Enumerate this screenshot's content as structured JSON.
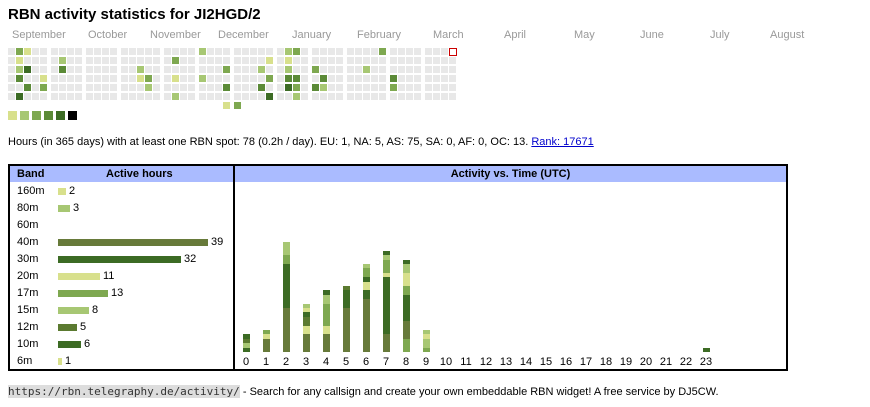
{
  "title": "RBN activity statistics for JI2HGD/2",
  "months": [
    "September",
    "October",
    "November",
    "December",
    "January",
    "February",
    "March",
    "April",
    "May",
    "June",
    "July",
    "August"
  ],
  "colors": {
    "empty": "#e8e8e8",
    "levels": [
      "#d8e08c",
      "#a7c773",
      "#7ea850",
      "#5b8a37",
      "#3c6b24",
      "#000000"
    ],
    "bands": {
      "160m": "#d8e08c",
      "80m": "#a7c773",
      "60m": "#cccccc",
      "40m": "#677a3a",
      "30m": "#3c6b24",
      "20m": "#d8e08c",
      "17m": "#7ea850",
      "15m": "#a7c773",
      "12m": "#5b7a30",
      "10m": "#3c6b24",
      "6m": "#d8e08c"
    },
    "header_bg": "#aabbff",
    "today_marker": "#cc0000"
  },
  "heatmap": {
    "today": {
      "week": 51,
      "day": 0
    },
    "active": [
      [
        1,
        1,
        0
      ],
      [
        1,
        0,
        2
      ],
      [
        1,
        2,
        1
      ],
      [
        1,
        3,
        3
      ],
      [
        1,
        5,
        4
      ],
      [
        2,
        0,
        0
      ],
      [
        2,
        2,
        4
      ],
      [
        2,
        4,
        3
      ],
      [
        4,
        3,
        0
      ],
      [
        4,
        4,
        2
      ],
      [
        6,
        1,
        1
      ],
      [
        6,
        2,
        3
      ],
      [
        15,
        2,
        1
      ],
      [
        15,
        3,
        0
      ],
      [
        16,
        3,
        2
      ],
      [
        16,
        4,
        1
      ],
      [
        19,
        1,
        2
      ],
      [
        19,
        3,
        0
      ],
      [
        19,
        5,
        1
      ],
      [
        19,
        6,
        4
      ],
      [
        22,
        0,
        1
      ],
      [
        22,
        3,
        1
      ],
      [
        25,
        2,
        2
      ],
      [
        25,
        4,
        3
      ],
      [
        29,
        2,
        1
      ],
      [
        29,
        4,
        3
      ],
      [
        30,
        1,
        0
      ],
      [
        30,
        3,
        2
      ],
      [
        30,
        5,
        4
      ],
      [
        32,
        0,
        1
      ],
      [
        32,
        1,
        0
      ],
      [
        32,
        2,
        1
      ],
      [
        32,
        3,
        3
      ],
      [
        32,
        4,
        4
      ],
      [
        32,
        6,
        0
      ],
      [
        33,
        0,
        2
      ],
      [
        33,
        3,
        3
      ],
      [
        33,
        4,
        2
      ],
      [
        33,
        5,
        1
      ],
      [
        35,
        2,
        2
      ],
      [
        35,
        4,
        3
      ],
      [
        36,
        3,
        3
      ],
      [
        36,
        4,
        1
      ],
      [
        41,
        2,
        1
      ],
      [
        43,
        0,
        2
      ],
      [
        44,
        3,
        3
      ],
      [
        44,
        4,
        2
      ],
      [
        51,
        0,
        5
      ]
    ]
  },
  "summary": {
    "text": "Hours (in 365 days) with at least one RBN spot: 78 (0.2h / day). EU: 1, NA: 5, AS: 75, SA: 0, AF: 0, OC: 13. ",
    "rank_label": "Rank: 17671"
  },
  "band_table": {
    "col_band": "Band",
    "col_hours": "Active hours",
    "rows": [
      {
        "band": "160m",
        "hours": "2"
      },
      {
        "band": "80m",
        "hours": "3"
      },
      {
        "band": "60m",
        "hours": ""
      },
      {
        "band": "40m",
        "hours": "39"
      },
      {
        "band": "30m",
        "hours": "32"
      },
      {
        "band": "20m",
        "hours": "11"
      },
      {
        "band": "17m",
        "hours": "13"
      },
      {
        "band": "15m",
        "hours": "8"
      },
      {
        "band": "12m",
        "hours": "5"
      },
      {
        "band": "10m",
        "hours": "6"
      },
      {
        "band": "6m",
        "hours": "1"
      }
    ]
  },
  "activity": {
    "title": "Activity vs. Time (UTC)",
    "hours": [
      "0",
      "1",
      "2",
      "3",
      "4",
      "5",
      "6",
      "7",
      "8",
      "9",
      "10",
      "11",
      "12",
      "13",
      "14",
      "15",
      "16",
      "17",
      "18",
      "19",
      "20",
      "21",
      "22",
      "23"
    ],
    "stacks": [
      [
        [
          "30m",
          1
        ],
        [
          "15m",
          1
        ],
        [
          "12m",
          1
        ],
        [
          "10m",
          1
        ]
      ],
      [
        [
          "40m",
          3
        ],
        [
          "20m",
          1
        ],
        [
          "17m",
          1
        ]
      ],
      [
        [
          "40m",
          10
        ],
        [
          "10m",
          10
        ],
        [
          "17m",
          2
        ],
        [
          "15m",
          3
        ]
      ],
      [
        [
          "40m",
          4
        ],
        [
          "20m",
          2
        ],
        [
          "12m",
          2
        ],
        [
          "10m",
          1
        ],
        [
          "20m",
          1
        ],
        [
          "15m",
          1
        ]
      ],
      [
        [
          "40m",
          4
        ],
        [
          "20m",
          2
        ],
        [
          "17m",
          5
        ],
        [
          "15m",
          2
        ],
        [
          "10m",
          1
        ]
      ],
      [
        [
          "40m",
          10
        ],
        [
          "30m",
          2
        ],
        [
          "10m",
          2
        ],
        [
          "12m",
          1
        ]
      ],
      [
        [
          "40m",
          12
        ],
        [
          "30m",
          2
        ],
        [
          "20m",
          2
        ],
        [
          "10m",
          1
        ],
        [
          "17m",
          2
        ],
        [
          "15m",
          1
        ]
      ],
      [
        [
          "40m",
          4
        ],
        [
          "30m",
          13
        ],
        [
          "20m",
          1
        ],
        [
          "17m",
          3
        ],
        [
          "15m",
          1
        ],
        [
          "10m",
          1
        ]
      ],
      [
        [
          "17m",
          3
        ],
        [
          "40m",
          4
        ],
        [
          "30m",
          6
        ],
        [
          "17m",
          2
        ],
        [
          "20m",
          3
        ],
        [
          "15m",
          2
        ],
        [
          "10m",
          1
        ]
      ],
      [
        [
          "17m",
          1
        ],
        [
          "15m",
          2
        ],
        [
          "20m",
          1
        ],
        [
          "15m",
          1
        ]
      ],
      [],
      [],
      [],
      [],
      [],
      [],
      [],
      [],
      [],
      [],
      [],
      [],
      [],
      [
        [
          "10m",
          1
        ]
      ]
    ]
  },
  "footer": {
    "url": "https://rbn.telegraphy.de/activity/",
    "text": " - Search for any callsign and create your own embeddable RBN widget! A free service by DJ5CW."
  }
}
